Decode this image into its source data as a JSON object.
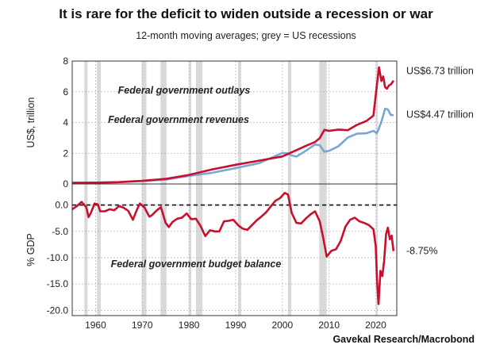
{
  "title": "It is rare for the deficit to widen outside a recession or war",
  "subtitle": "12-month moving averages; grey = US recessions",
  "source": "Gavekal Research/Macrobond",
  "colors": {
    "outlays": "#c8102e",
    "revenues": "#7aa6d6",
    "recession": "#d9d9d9",
    "balance": "#c8102e"
  },
  "chart_data": [
    {
      "type": "line",
      "title": "",
      "ylabel": "US$, trillion",
      "xlim": [
        1955,
        2024.5
      ],
      "ylim": [
        0,
        8
      ],
      "yticks": [
        0,
        2,
        4,
        6,
        8
      ],
      "recessions": [
        [
          1957.6,
          1958.3
        ],
        [
          1960.3,
          1961.1
        ],
        [
          1969.9,
          1970.9
        ],
        [
          1973.9,
          1975.2
        ],
        [
          1980.0,
          1980.5
        ],
        [
          1981.5,
          1982.9
        ],
        [
          1990.5,
          1991.2
        ],
        [
          2001.2,
          2001.9
        ],
        [
          2007.9,
          2009.5
        ],
        [
          2020.1,
          2020.4
        ]
      ],
      "series": [
        {
          "name": "Federal government outlays",
          "end_label": "US$6.73 trillion",
          "x": [
            1955,
            1960,
            1965,
            1970,
            1975,
            1980,
            1985,
            1990,
            1995,
            2000,
            2005,
            2007,
            2008,
            2009,
            2010,
            2012,
            2014,
            2016,
            2018,
            2019.5,
            2020.3,
            2020.7,
            2021.2,
            2021.6,
            2022.0,
            2022.4,
            2022.8,
            2023.3,
            2023.8
          ],
          "values": [
            0.07,
            0.09,
            0.12,
            0.2,
            0.33,
            0.59,
            0.95,
            1.25,
            1.52,
            1.79,
            2.47,
            2.73,
            2.98,
            3.52,
            3.46,
            3.54,
            3.5,
            3.85,
            4.1,
            4.45,
            6.6,
            7.6,
            6.7,
            7.0,
            6.3,
            6.2,
            6.4,
            6.5,
            6.73
          ]
        },
        {
          "name": "Federal government revenues",
          "end_label": "US$4.47 trillion",
          "x": [
            1955,
            1960,
            1965,
            1970,
            1975,
            1980,
            1985,
            1990,
            1995,
            2000,
            2001,
            2002,
            2003,
            2005,
            2007,
            2008,
            2009,
            2010,
            2012,
            2014,
            2016,
            2018,
            2019.5,
            2020.2,
            2020.6,
            2021.2,
            2022.0,
            2022.6,
            2023.2,
            2023.8
          ],
          "values": [
            0.07,
            0.09,
            0.12,
            0.19,
            0.28,
            0.52,
            0.73,
            1.03,
            1.35,
            2.02,
            2.0,
            1.86,
            1.78,
            2.15,
            2.57,
            2.52,
            2.1,
            2.16,
            2.45,
            3.02,
            3.27,
            3.3,
            3.46,
            3.3,
            3.55,
            4.05,
            4.9,
            4.85,
            4.5,
            4.47
          ]
        }
      ]
    },
    {
      "type": "line",
      "title": "",
      "ylabel": "% GDP",
      "xlim": [
        1955,
        2024.5
      ],
      "ylim": [
        -21,
        4
      ],
      "yticks": [
        0.0,
        -5.0,
        -10.0,
        -15.0,
        -20.0
      ],
      "xticks": [
        1960,
        1970,
        1980,
        1990,
        2000,
        2010,
        2020
      ],
      "series": [
        {
          "name": "Federal government budget balance",
          "end_label": "-8.75%",
          "x": [
            1955,
            1956,
            1957,
            1958,
            1958.5,
            1959,
            1959.8,
            1960.5,
            1961,
            1962,
            1963,
            1964,
            1965,
            1966,
            1967,
            1968,
            1968.8,
            1969.5,
            1970.5,
            1971.5,
            1972,
            1973,
            1974,
            1975,
            1975.7,
            1976.5,
            1977.5,
            1978.5,
            1979.5,
            1980.5,
            1981.5,
            1982.5,
            1983.5,
            1984.5,
            1985.5,
            1986.5,
            1987.5,
            1988.5,
            1989.5,
            1990.5,
            1991.5,
            1992.5,
            1993.5,
            1994.5,
            1995.5,
            1996.5,
            1997.5,
            1998.5,
            1999.5,
            2000.5,
            2001.2,
            2002,
            2003,
            2004,
            2005,
            2006,
            2007,
            2008,
            2008.7,
            2009.5,
            2010.5,
            2011.5,
            2012.5,
            2013.5,
            2014.5,
            2015.5,
            2016.5,
            2017.5,
            2018.5,
            2019.5,
            2020.0,
            2020.3,
            2020.6,
            2021.0,
            2021.4,
            2021.8,
            2022.2,
            2022.6,
            2023.0,
            2023.4,
            2023.8
          ],
          "values": [
            -0.8,
            -0.2,
            0.6,
            -0.4,
            -2.3,
            -1.5,
            0.3,
            0.1,
            -1.2,
            -1.2,
            -0.8,
            -1.0,
            -0.2,
            -0.5,
            -1.1,
            -2.8,
            -1.0,
            0.3,
            -0.5,
            -2.2,
            -2.0,
            -1.1,
            -0.4,
            -3.4,
            -4.2,
            -3.2,
            -2.6,
            -2.4,
            -1.6,
            -2.7,
            -2.6,
            -4.0,
            -5.9,
            -4.8,
            -5.0,
            -5.0,
            -3.1,
            -3.0,
            -2.8,
            -3.8,
            -4.5,
            -4.7,
            -3.8,
            -2.9,
            -2.2,
            -1.4,
            -0.3,
            0.8,
            1.3,
            2.3,
            2.0,
            -1.5,
            -3.4,
            -3.5,
            -2.6,
            -1.8,
            -1.2,
            -3.1,
            -6.0,
            -9.8,
            -8.7,
            -8.4,
            -6.8,
            -4.1,
            -2.8,
            -2.4,
            -3.1,
            -3.4,
            -3.8,
            -4.6,
            -7.8,
            -14.9,
            -18.8,
            -12.5,
            -13.5,
            -10.6,
            -5.5,
            -4.3,
            -6.5,
            -5.8,
            -8.75
          ]
        }
      ]
    }
  ],
  "annotations": {
    "outlays_label": "Federal government outlays",
    "revenues_label": "Federal government revenues",
    "balance_label": "Federal government budget balance"
  }
}
